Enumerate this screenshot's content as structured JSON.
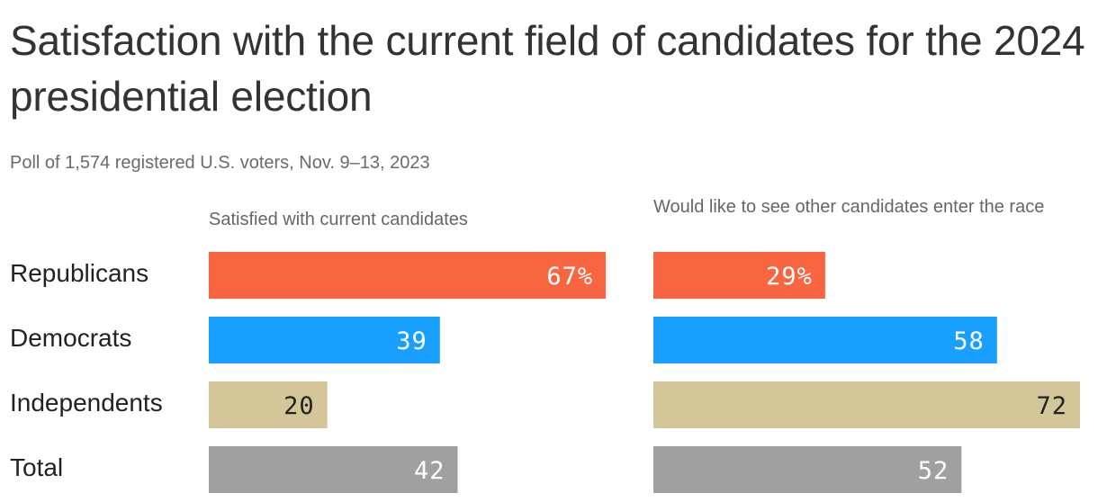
{
  "title": "Satisfaction with the current field of candidates for the 2024 presidential election",
  "subtitle": "Poll of 1,574 registered U.S. voters, Nov. 9–13, 2023",
  "colors": {
    "Republicans": "#f76641",
    "Democrats": "#19a0ff",
    "Independents": "#d3c79a",
    "Total": "#a0a0a0",
    "label_light": "#ffffff",
    "label_dark": "#222222"
  },
  "chart_data": {
    "type": "bar",
    "orientation": "horizontal",
    "categories": [
      "Republicans",
      "Democrats",
      "Independents",
      "Total"
    ],
    "series": [
      {
        "name": "Satisfied with current candidates",
        "values": [
          67,
          39,
          20,
          42
        ],
        "labels": [
          "67%",
          "39",
          "20",
          "42"
        ]
      },
      {
        "name": "Would like to see other candidates enter the race",
        "values": [
          29,
          58,
          72,
          52
        ],
        "labels": [
          "29%",
          "58",
          "72",
          "52"
        ]
      }
    ],
    "xlim": [
      0,
      72
    ],
    "grid": false
  }
}
